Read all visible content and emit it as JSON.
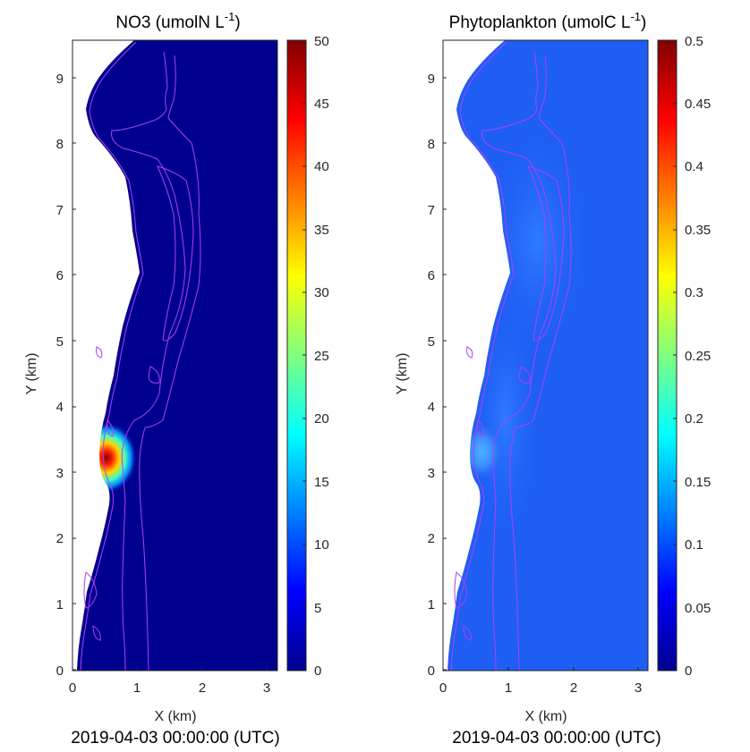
{
  "chart_data": [
    {
      "type": "heatmap",
      "title_main": "NO3 (umolN L",
      "title_exp": "-1",
      "title_close": ")",
      "xlabel": "X (km)",
      "ylabel": "Y (km)",
      "xlim": [
        0,
        3.2
      ],
      "ylim": [
        0,
        9.55
      ],
      "x_ticks": [
        "0",
        "1",
        "2",
        "3"
      ],
      "y_ticks": [
        "0",
        "1",
        "2",
        "3",
        "4",
        "5",
        "6",
        "7",
        "8",
        "9"
      ],
      "colorbar": {
        "limits": [
          0,
          50
        ],
        "ticks": [
          "0",
          "5",
          "10",
          "15",
          "20",
          "25",
          "30",
          "35",
          "40",
          "45",
          "50"
        ],
        "colormap": "jet"
      },
      "background_color": "#00008f",
      "land_color": "#ffffff",
      "contour_color": "#b040f0",
      "hotspot": {
        "x_km": 0.55,
        "y_km": 3.15,
        "peak_value": 50
      },
      "footer": "2019-04-03 00:00:00 (UTC)"
    },
    {
      "type": "heatmap",
      "title_main": "Phytoplankton (umolC L",
      "title_exp": "-1",
      "title_close": ")",
      "xlabel": "X (km)",
      "ylabel": "Y (km)",
      "xlim": [
        0,
        3.2
      ],
      "ylim": [
        0,
        9.55
      ],
      "x_ticks": [
        "0",
        "1",
        "2",
        "3"
      ],
      "y_ticks": [
        "0",
        "1",
        "2",
        "3",
        "4",
        "5",
        "6",
        "7",
        "8",
        "9"
      ],
      "colorbar": {
        "limits": [
          0,
          0.5
        ],
        "ticks": [
          "0",
          "0.05",
          "0.1",
          "0.15",
          "0.2",
          "0.25",
          "0.3",
          "0.35",
          "0.4",
          "0.45",
          "0.5"
        ],
        "colormap": "jet"
      },
      "background_color": "#1e5ef5",
      "land_color": "#ffffff",
      "contour_color": "#b040f0",
      "hotspot": {
        "x_km": 0.55,
        "y_km": 3.2,
        "peak_value": 0.15
      },
      "footer": "2019-04-03 00:00:00 (UTC)"
    }
  ]
}
